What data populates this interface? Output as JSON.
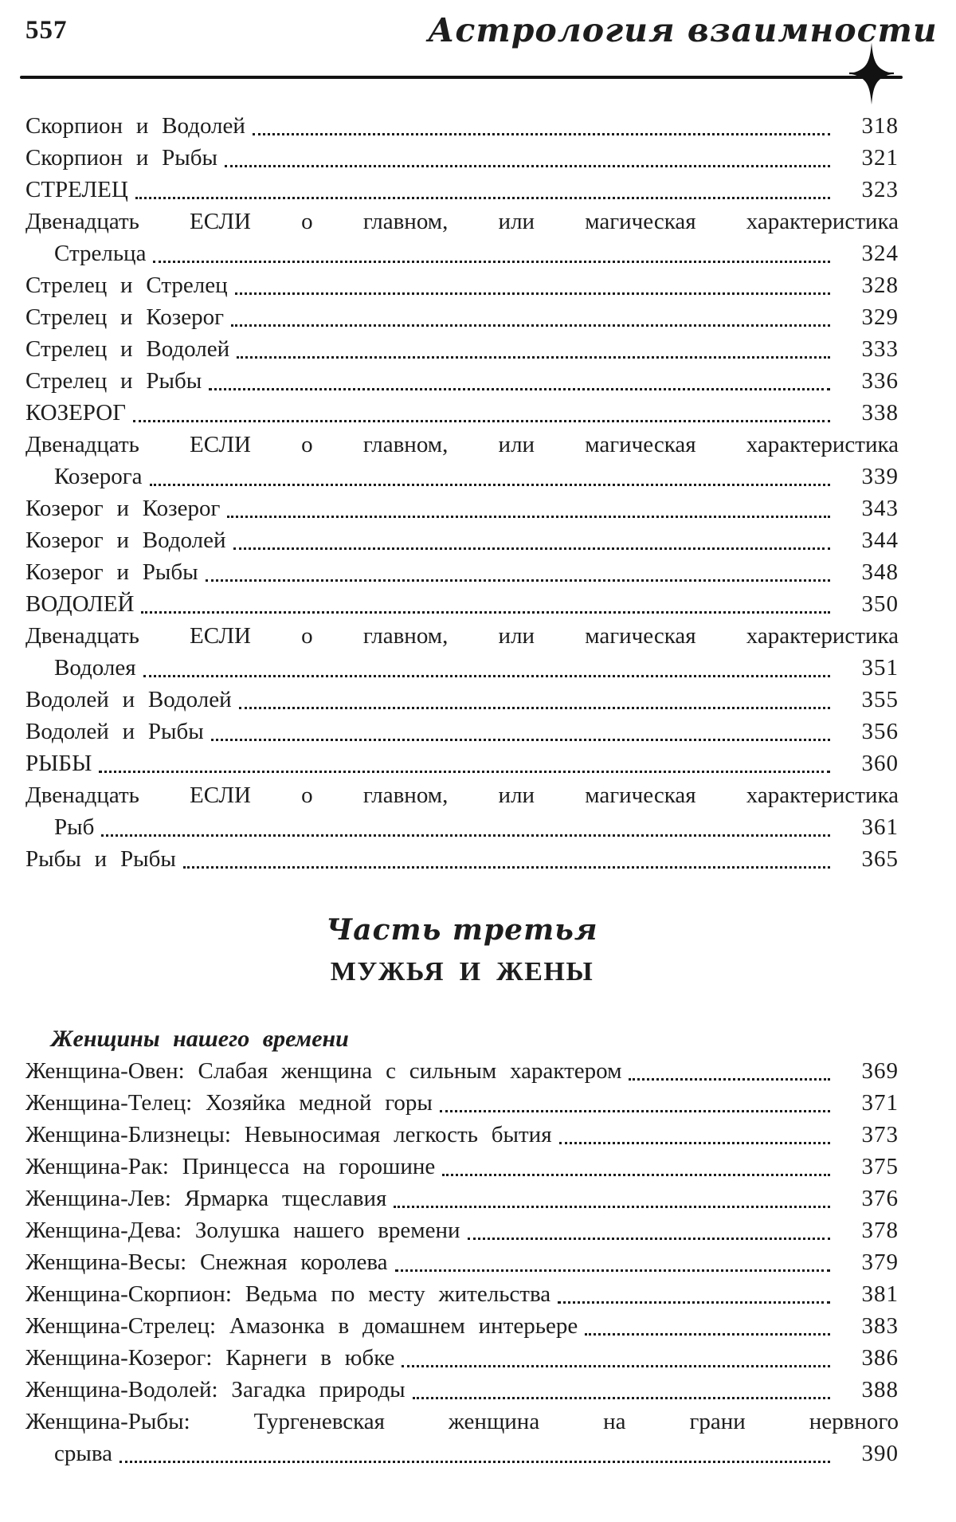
{
  "colors": {
    "ink": "#1d1d1d",
    "paper": "#ffffff"
  },
  "page_header": {
    "page_number": "557",
    "running_title": "Астрология взаимности"
  },
  "part2_toc": {
    "entries": [
      {
        "label": "Скорпион и Водолей",
        "page": "318"
      },
      {
        "label": "Скорпион и Рыбы",
        "page": "321"
      },
      {
        "label": "СТРЕЛЕЦ",
        "page": "323"
      },
      {
        "label": "Двенадцать ЕСЛИ о главном, или магическая характеристика",
        "label2": "Стрельца",
        "page": "324"
      },
      {
        "label": "Стрелец и Стрелец",
        "page": "328"
      },
      {
        "label": "Стрелец и Козерог",
        "page": "329"
      },
      {
        "label": "Стрелец и Водолей",
        "page": "333"
      },
      {
        "label": "Стрелец и Рыбы",
        "page": "336"
      },
      {
        "label": "КОЗЕРОГ",
        "page": "338"
      },
      {
        "label": "Двенадцать ЕСЛИ о главном, или магическая характеристика",
        "label2": "Козерога",
        "page": "339"
      },
      {
        "label": "Козерог и Козерог",
        "page": "343"
      },
      {
        "label": "Козерог и Водолей",
        "page": "344"
      },
      {
        "label": "Козерог и Рыбы",
        "page": "348"
      },
      {
        "label": "ВОДОЛЕЙ",
        "page": "350"
      },
      {
        "label": "Двенадцать ЕСЛИ о главном, или магическая характеристика",
        "label2": "Водолея",
        "page": "351"
      },
      {
        "label": "Водолей и Водолей",
        "page": "355"
      },
      {
        "label": "Водолей и Рыбы",
        "page": "356"
      },
      {
        "label": "РЫБЫ",
        "page": "360"
      },
      {
        "label": "Двенадцать ЕСЛИ о главном, или магическая характеристика",
        "label2": "Рыб",
        "page": "361"
      },
      {
        "label": "Рыбы и Рыбы",
        "page": "365"
      }
    ]
  },
  "part_heading": {
    "kicker": "Часть третья",
    "title": "МУЖЬЯ И ЖЕНЫ"
  },
  "part3_toc": {
    "section_label": "Женщины нашего времени",
    "entries": [
      {
        "label": "Женщина-Овен: Слабая женщина с сильным характером",
        "page": "369"
      },
      {
        "label": "Женщина-Телец: Хозяйка медной горы",
        "page": "371"
      },
      {
        "label": "Женщина-Близнецы: Невыносимая легкость бытия",
        "page": "373"
      },
      {
        "label": "Женщина-Рак: Принцесса на горошине",
        "page": "375"
      },
      {
        "label": "Женщина-Лев: Ярмарка тщеславия",
        "page": "376"
      },
      {
        "label": "Женщина-Дева: Золушка нашего времени",
        "page": "378"
      },
      {
        "label": "Женщина-Весы: Снежная королева",
        "page": "379"
      },
      {
        "label": "Женщина-Скорпион: Ведьма по месту жительства",
        "page": "381"
      },
      {
        "label": "Женщина-Стрелец: Амазонка в домашнем интерьере",
        "page": "383"
      },
      {
        "label": "Женщина-Козерог: Карнеги в юбке",
        "page": "386"
      },
      {
        "label": "Женщина-Водолей: Загадка природы",
        "page": "388"
      },
      {
        "label": "Женщина-Рыбы: Тургеневская женщина на грани нервного",
        "label2": "срыва",
        "page": "390"
      }
    ]
  }
}
